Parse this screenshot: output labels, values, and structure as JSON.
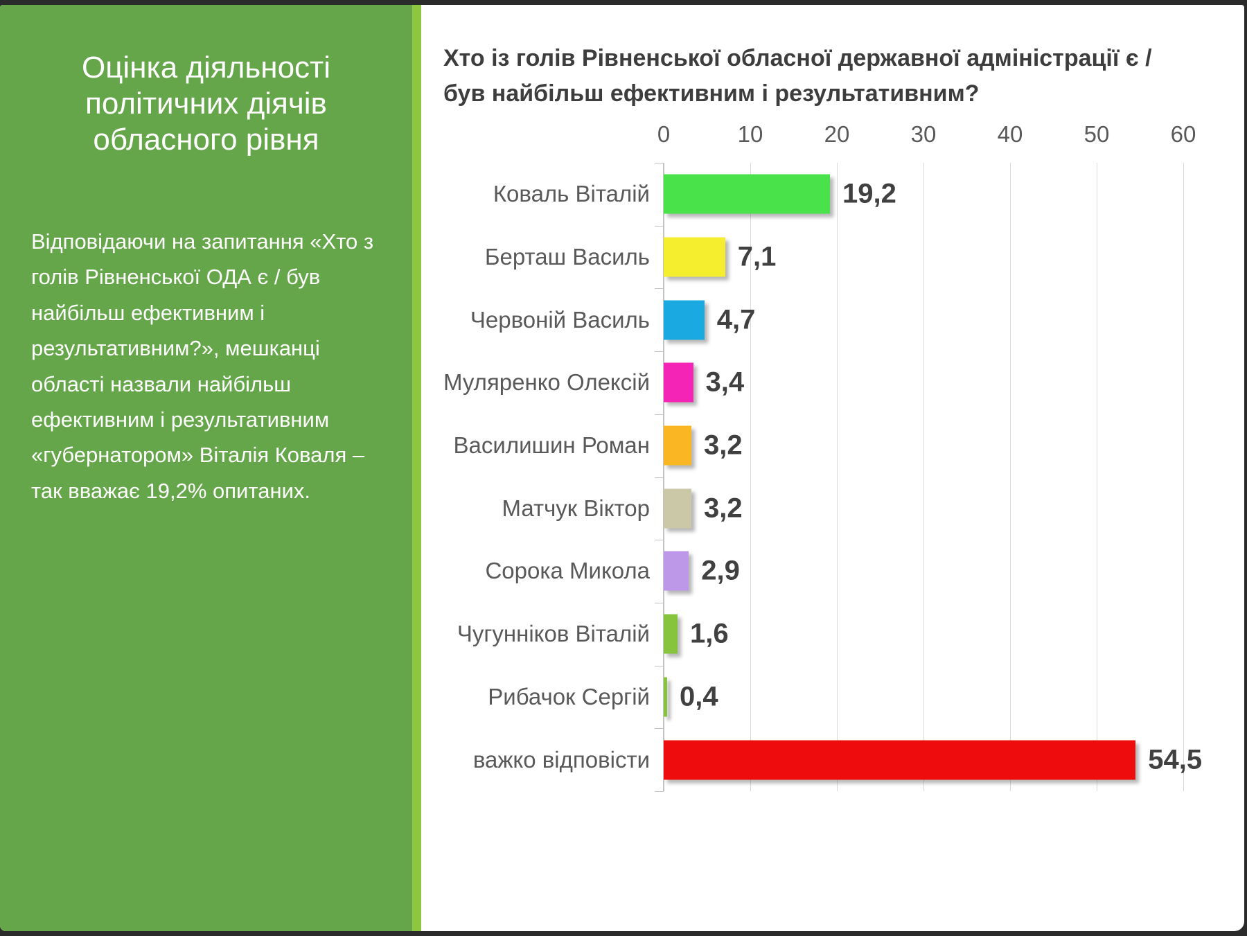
{
  "sidebar": {
    "title": "Оцінка діяльності\nполітичних діячів\nобласного рівня",
    "paragraph": "Відповідаючи на запитання «Хто з голів Рівненської ОДА є / був найбільш ефективним і результативним?», мешканці області назвали найбільш ефективним і результативним «губернатором» Віталія Коваля – так вважає 19,2% опитаних."
  },
  "chart_data": {
    "type": "bar",
    "orientation": "horizontal",
    "title": "Хто із голів Рівненської обласної державної адміністрації є /\nбув найбільш ефективним і результативним?",
    "categories": [
      "Коваль Віталій",
      "Берташ Василь",
      "Червоній Василь",
      "Муляренко Олексій",
      "Василишин Роман",
      "Матчук Віктор",
      "Сорока Микола",
      "Чугунніков Віталій",
      "Рибачок Сергій",
      "важко відповісти"
    ],
    "values": [
      19.2,
      7.1,
      4.7,
      3.4,
      3.2,
      3.2,
      2.9,
      1.6,
      0.4,
      54.5
    ],
    "value_labels": [
      "19,2",
      "7,1",
      "4,7",
      "3,4",
      "3,2",
      "3,2",
      "2,9",
      "1,6",
      "0,4",
      "54,5"
    ],
    "bar_colors": [
      "#4ae24a",
      "#f4ee2f",
      "#1aa9e0",
      "#f324b6",
      "#fbb624",
      "#cbc8a8",
      "#be98e8",
      "#86c43e",
      "#86c43e",
      "#ee0c0c"
    ],
    "xlim": [
      0,
      60
    ],
    "x_ticks": [
      "0",
      "10",
      "20",
      "30",
      "40",
      "50",
      "60"
    ],
    "grid": true,
    "legend": false,
    "xlabel": "",
    "ylabel": ""
  },
  "colors": {
    "sidebar_green": "#66a64a",
    "divider_green": "#8dc63f",
    "highlight_red": "#ee0c0c",
    "title_text": "#3d3d3d",
    "label_gray": "#595959",
    "gridline_gray": "#d9d9d9",
    "axis_gray": "#c3c3c3"
  }
}
